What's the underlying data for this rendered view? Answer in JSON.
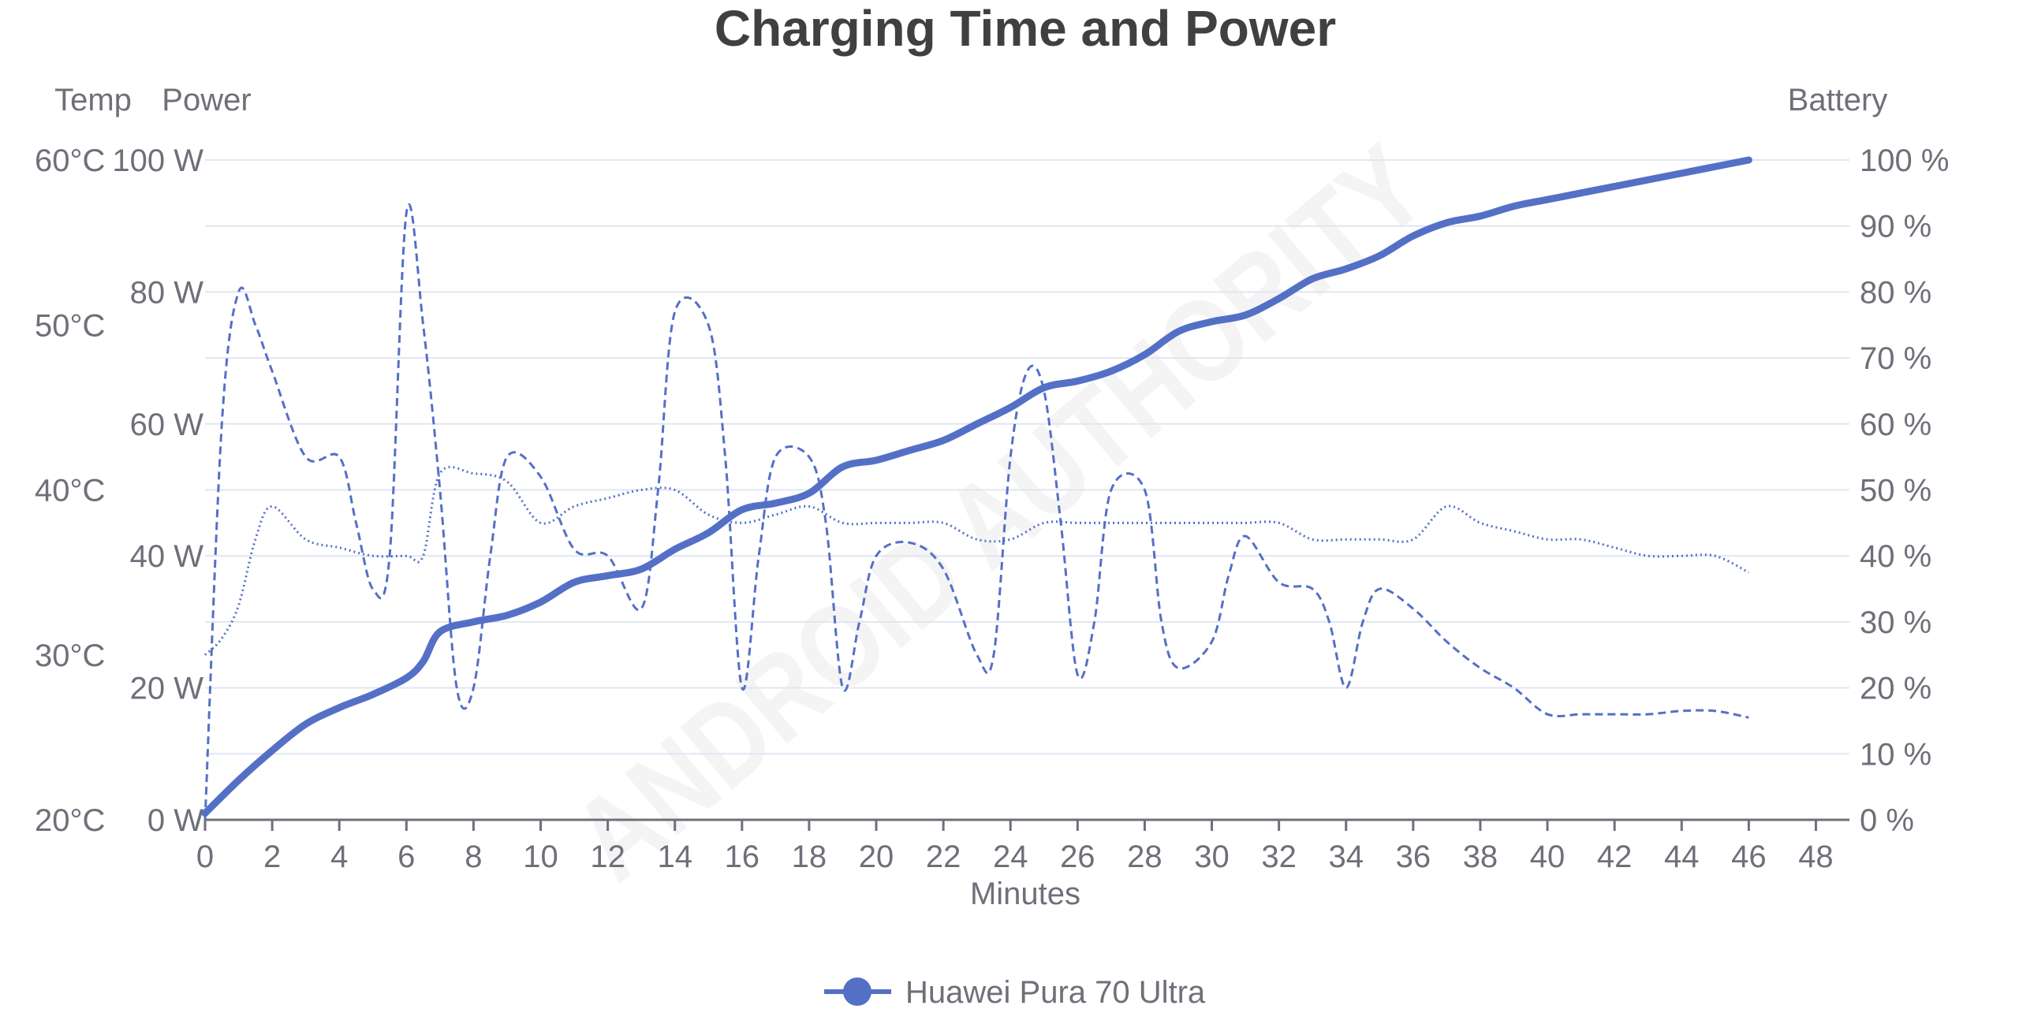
{
  "chart_data": {
    "type": "line",
    "title": "Charging Time and Power",
    "xlabel": "Minutes",
    "xlim": [
      0,
      49
    ],
    "x_ticks": [
      0,
      2,
      4,
      6,
      8,
      10,
      12,
      14,
      16,
      18,
      20,
      22,
      24,
      26,
      28,
      30,
      32,
      34,
      36,
      38,
      40,
      42,
      44,
      46,
      48
    ],
    "grid": true,
    "legend_position": "bottom-center",
    "watermark": "ANDROID AUTHORITY",
    "axes": {
      "temp": {
        "name": "Temp",
        "position": "left-outer",
        "ylim": [
          20,
          60
        ],
        "ticks": [
          20,
          30,
          40,
          50,
          60
        ],
        "unit": "°C"
      },
      "power": {
        "name": "Power",
        "position": "left",
        "ylim": [
          0,
          100
        ],
        "ticks": [
          0,
          20,
          40,
          60,
          80,
          100
        ],
        "unit": " W"
      },
      "battery": {
        "name": "Battery",
        "position": "right",
        "ylim": [
          0,
          100
        ],
        "ticks": [
          0,
          10,
          20,
          30,
          40,
          50,
          60,
          70,
          80,
          90,
          100
        ],
        "unit": " %"
      }
    },
    "series": [
      {
        "name": "Huawei Pura 70 Ultra",
        "axis": "battery",
        "style": "solid",
        "color": "#5470c6",
        "x": [
          0,
          1,
          2,
          3,
          4,
          5,
          6,
          6.5,
          7,
          8,
          9,
          10,
          11,
          12,
          13,
          14,
          15,
          16,
          17,
          18,
          19,
          20,
          21,
          22,
          23,
          24,
          25,
          26,
          27,
          28,
          29,
          30,
          31,
          32,
          33,
          34,
          35,
          36,
          37,
          38,
          39,
          40,
          41,
          42,
          43,
          44,
          45,
          46
        ],
        "values": [
          1,
          6,
          10.5,
          14.5,
          17,
          19,
          21.5,
          24,
          28.5,
          30,
          31,
          33,
          36,
          37,
          38,
          41,
          43.5,
          47,
          48,
          49.5,
          53.5,
          54.5,
          56,
          57.5,
          60,
          62.5,
          65.5,
          66.5,
          68,
          70.5,
          74,
          75.5,
          76.5,
          79,
          82,
          83.5,
          85.5,
          88.5,
          90.5,
          91.5,
          93,
          94,
          95,
          96,
          97,
          98,
          99,
          100
        ]
      },
      {
        "axis": "power",
        "style": "dashed",
        "color": "#5470c6",
        "x": [
          0,
          0.5,
          1,
          1.5,
          2,
          3,
          4,
          4.5,
          5,
          5.5,
          6,
          6.5,
          7,
          7.5,
          8,
          8.5,
          9,
          10,
          11,
          12,
          13,
          13.5,
          14,
          15,
          15.5,
          16,
          16.5,
          17,
          18,
          18.5,
          19,
          19.5,
          20,
          21,
          22,
          23,
          23.5,
          24,
          24.5,
          25,
          25.5,
          26,
          26.5,
          27,
          28,
          28.5,
          29,
          30,
          30.5,
          31,
          32,
          33,
          33.5,
          34,
          34.5,
          35,
          36,
          37,
          38,
          39,
          40,
          41,
          42,
          43,
          44,
          45,
          46
        ],
        "values": [
          0,
          60,
          80,
          75,
          68,
          55,
          55,
          45,
          35,
          40,
          92,
          75,
          50,
          20,
          20,
          40,
          55,
          52,
          41,
          40,
          32,
          50,
          77,
          75,
          55,
          20,
          40,
          55,
          55,
          45,
          20,
          30,
          40,
          42,
          38,
          25,
          25,
          55,
          68,
          65,
          45,
          22,
          30,
          50,
          50,
          30,
          23,
          27,
          37,
          43,
          36,
          35,
          30,
          20,
          30,
          35,
          32,
          27,
          23,
          20,
          16,
          16,
          16,
          16,
          16.5,
          16.5,
          15.5
        ]
      },
      {
        "axis": "temp",
        "style": "dotted",
        "color": "#5470c6",
        "x": [
          0,
          0.5,
          1,
          1.5,
          2,
          3,
          4,
          5,
          6,
          6.5,
          7,
          8,
          9,
          10,
          11,
          12,
          13,
          14,
          15,
          16,
          17,
          18,
          19,
          20,
          21,
          22,
          23,
          24,
          25,
          26,
          27,
          28,
          29,
          30,
          31,
          32,
          33,
          34,
          35,
          36,
          37,
          38,
          39,
          40,
          41,
          42,
          43,
          44,
          45,
          46
        ],
        "values": [
          30,
          31,
          33,
          37,
          39,
          37,
          36.5,
          36,
          36,
          36,
          41,
          41,
          40.5,
          38,
          39,
          39.5,
          40,
          40,
          38.5,
          38,
          38.5,
          39,
          38,
          38,
          38,
          38,
          37,
          37,
          38,
          38,
          38,
          38,
          38,
          38,
          38,
          38,
          37,
          37,
          37,
          37,
          39,
          38,
          37.5,
          37,
          37,
          36.5,
          36,
          36,
          36,
          35
        ]
      }
    ]
  }
}
